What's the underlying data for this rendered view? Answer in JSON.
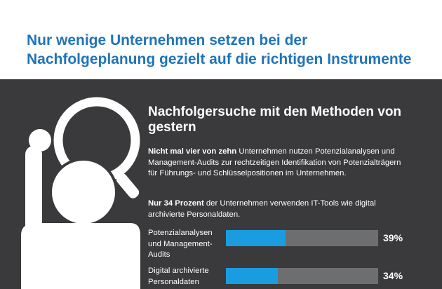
{
  "header": {
    "title": "Nur wenige Unternehmen setzen bei der Nachfolgeplanung gezielt auf die richtigen Instrumente"
  },
  "panel": {
    "title": "Nachfolgersuche mit den Methoden von gestern",
    "paragraph1": {
      "bold": "Nicht mal vier von zehn",
      "text": " Unternehmen nutzen Potenzialanalysen und Management-Audits zur rechtzeitigen Identifikation von Potenzialträgern für Führungs- und Schlüsselpositionen im Unternehmen."
    },
    "paragraph2": {
      "bold": "Nur 34 Prozent",
      "text": " der Unternehmen verwenden IT-Tools wie digital archivierte Personaldaten."
    },
    "icon": "person-with-magnifying-glass-icon"
  },
  "colors": {
    "headline": "#1f74b9",
    "background": "#3a3a3c",
    "bar_fill": "#1a9de0",
    "bar_track": "#6d6e70",
    "text": "#ffffff"
  },
  "chart_data": {
    "type": "bar",
    "orientation": "horizontal",
    "categories": [
      "Potenzialanalysen und Management-Audits",
      "Digital archivierte Personaldaten"
    ],
    "values": [
      39,
      34
    ],
    "value_labels": [
      "39%",
      "34%"
    ],
    "xlim": [
      0,
      100
    ],
    "grid": false
  }
}
